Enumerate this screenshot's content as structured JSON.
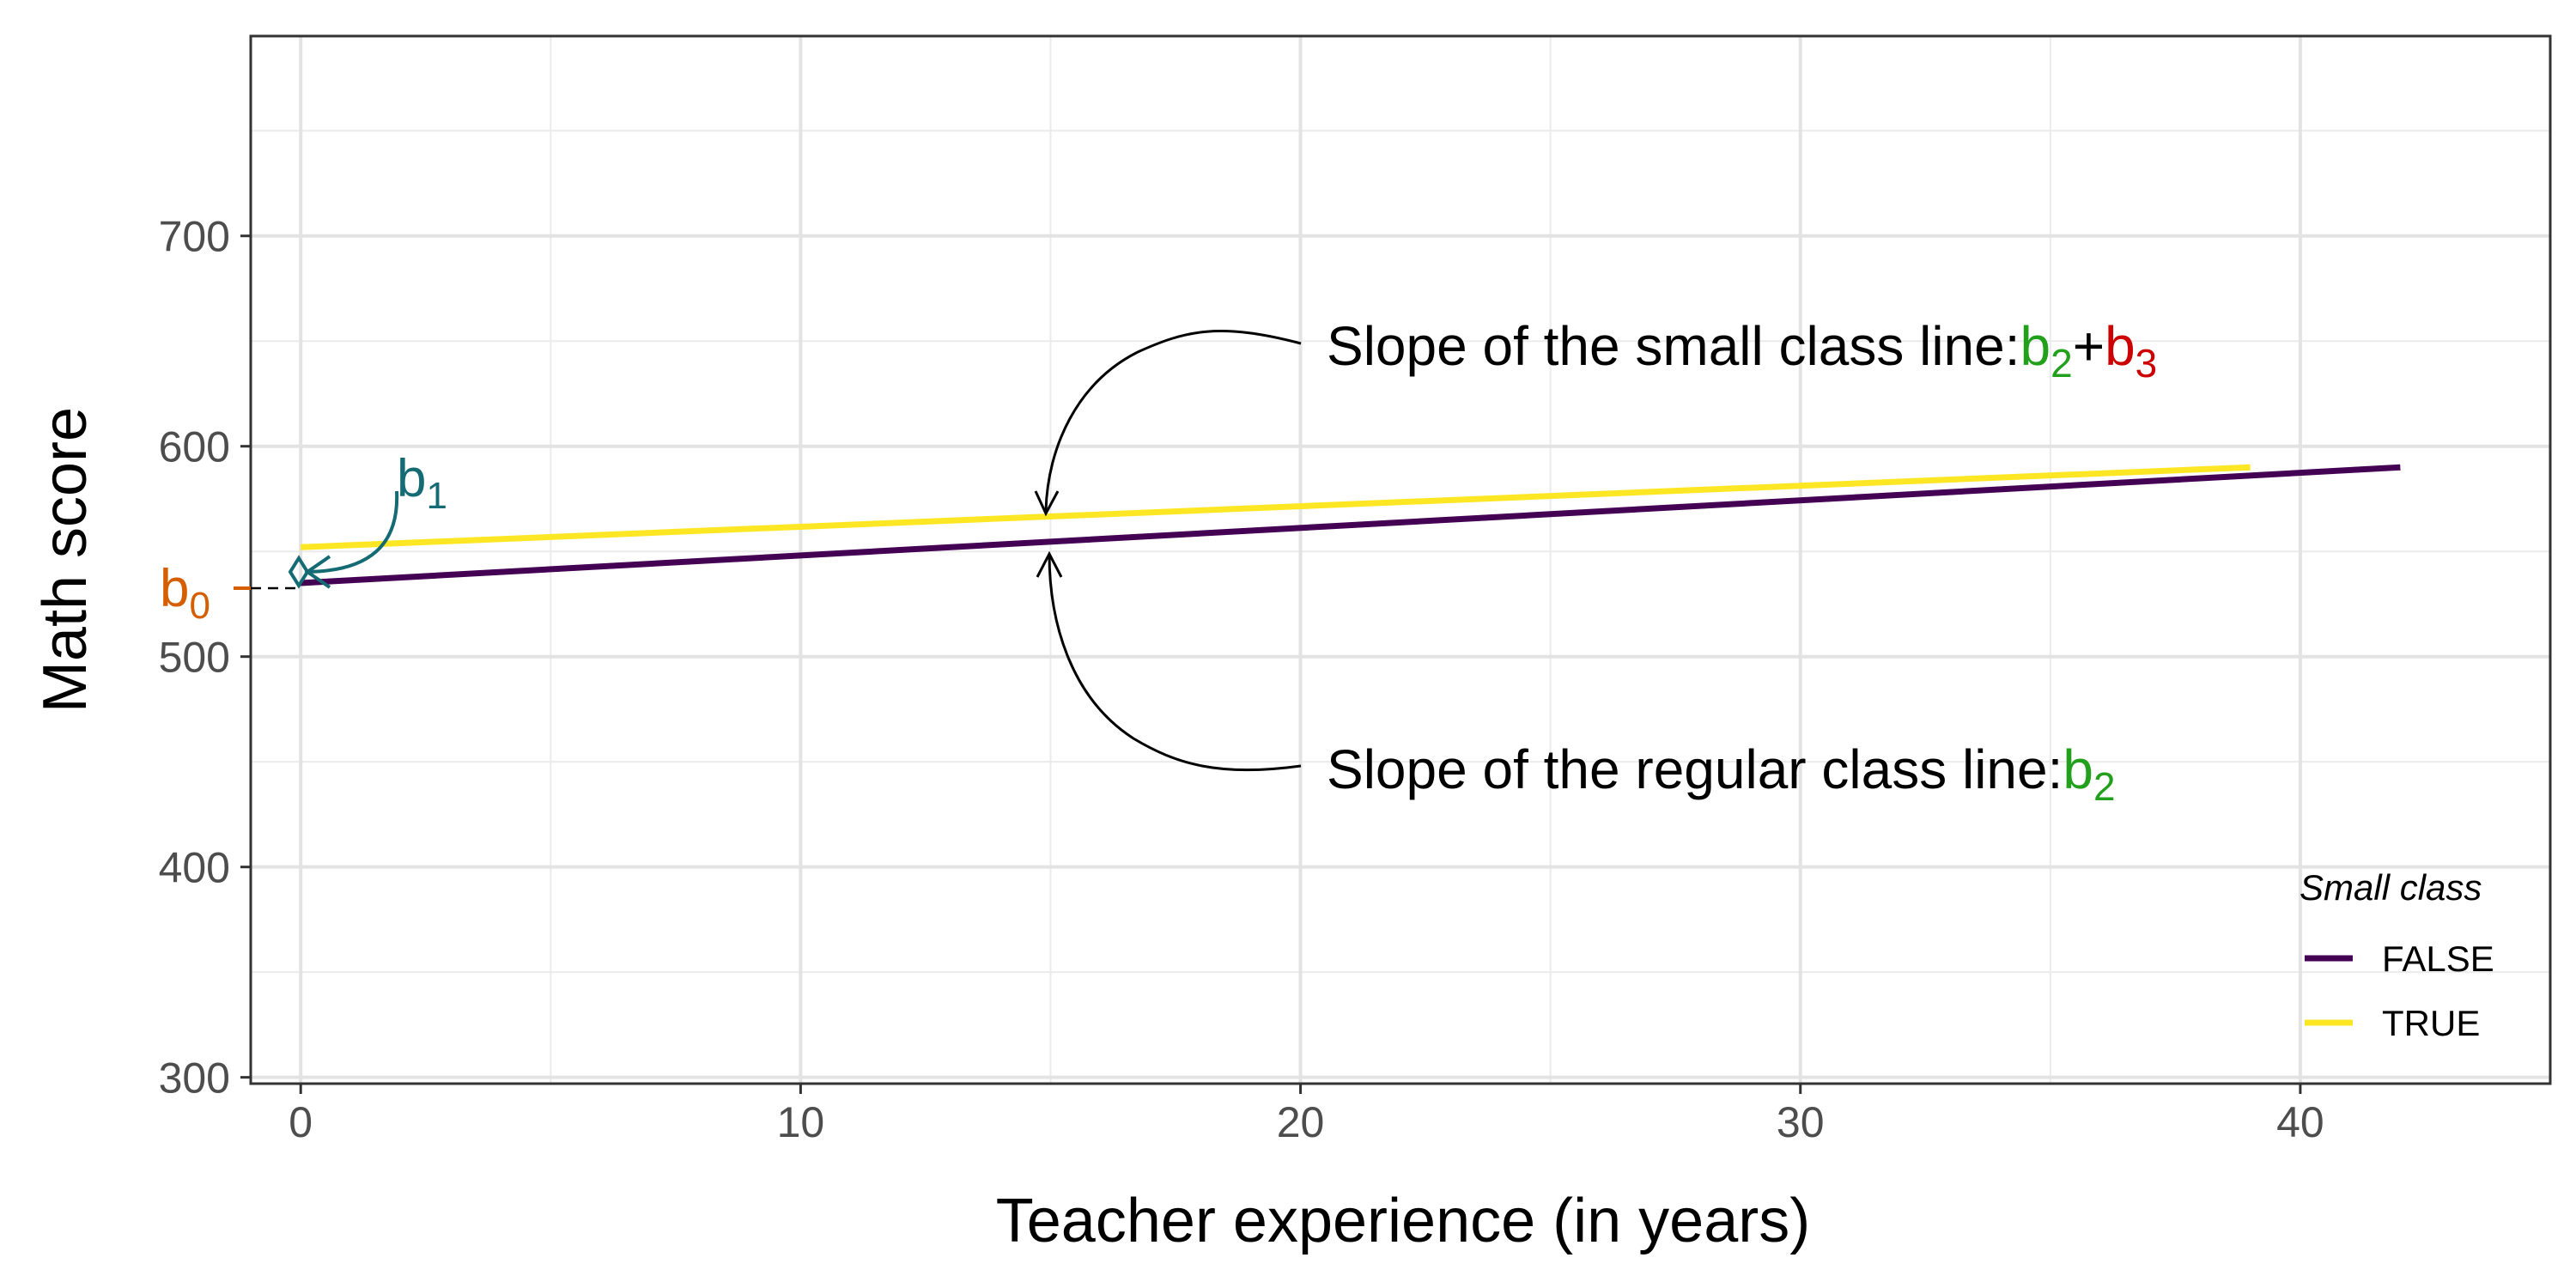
{
  "chart_data": {
    "type": "line",
    "xlabel": "Teacher experience (in years)",
    "ylabel": "Math score",
    "xlim": [
      -1,
      45
    ],
    "ylim": [
      297,
      795
    ],
    "x_ticks": [
      0,
      10,
      20,
      30,
      40
    ],
    "y_ticks": [
      300,
      400,
      500,
      600,
      700
    ],
    "x_tick_labels": [
      "0",
      "10",
      "20",
      "30",
      "40"
    ],
    "y_tick_labels": [
      "300",
      "400",
      "500",
      "600",
      "700"
    ],
    "grid": true,
    "legend": {
      "title": "Small class",
      "position": "bottom-right",
      "entries": [
        "FALSE",
        "TRUE"
      ]
    },
    "series": [
      {
        "name": "FALSE",
        "color": "#440154",
        "x": [
          0,
          42
        ],
        "y": [
          535,
          590
        ]
      },
      {
        "name": "TRUE",
        "color": "#FDE725",
        "x": [
          0,
          39
        ],
        "y": [
          552,
          590
        ]
      }
    ],
    "annotations": {
      "small_slope": {
        "text": "Slope of the small class line:",
        "b_a": "b",
        "b_a_sub": "2",
        "b_a_color": "#22A01C",
        "plus": "+",
        "b_b": "b",
        "b_b_sub": "3",
        "b_b_color": "#CC0000"
      },
      "regular_slope": {
        "text": "Slope of the regular class line:",
        "b": "b",
        "b_sub": "2",
        "b_color": "#22A01C"
      },
      "b0": {
        "b": "b",
        "sub": "0",
        "color": "#D55E00"
      },
      "b1": {
        "b": "b",
        "sub": "1",
        "color": "#156B73"
      }
    }
  }
}
